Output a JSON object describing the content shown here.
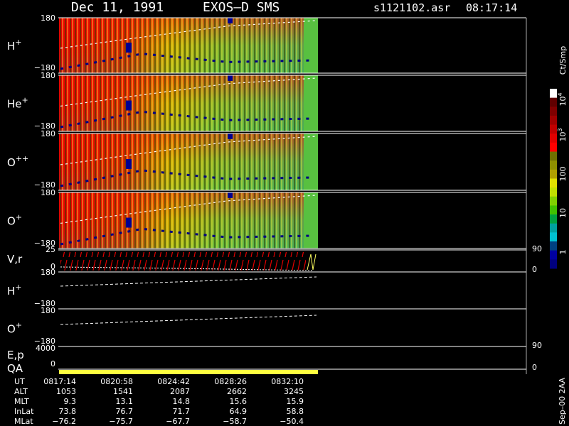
{
  "header": {
    "date": "Dec 11, 1991",
    "instrument": "EXOS–D SMS",
    "file": "s1121102.asr",
    "time": "08:17:14"
  },
  "panels": [
    {
      "ion": "H",
      "charge": "+",
      "top": "180",
      "bottom": "−180"
    },
    {
      "ion": "He",
      "charge": "+",
      "top": "180",
      "bottom": "−180"
    },
    {
      "ion": "O",
      "charge": "++",
      "top": "180",
      "bottom": "−180"
    },
    {
      "ion": "O",
      "charge": "+",
      "top": "180",
      "bottom": "−180"
    }
  ],
  "velocity": {
    "label": "V,r",
    "left_top": "25",
    "left_bottom": "0",
    "right_top": "90",
    "right_bottom": "0"
  },
  "line_panels": [
    {
      "ion": "H",
      "charge": "+",
      "top": "180",
      "bottom": "−180"
    },
    {
      "ion": "O",
      "charge": "+",
      "top": "180",
      "bottom": "−180"
    }
  ],
  "energy": {
    "label": "E,p",
    "left_top": "4000",
    "left_bottom": "0",
    "right_top": "90",
    "right_bottom": "0"
  },
  "qa": "QA",
  "colorbar": {
    "unit": "Ct/Smp",
    "labels": [
      {
        "base": "10",
        "exp": "4"
      },
      {
        "base": "10",
        "exp": "3"
      },
      {
        "base": "100"
      },
      {
        "base": "10"
      },
      {
        "base": "1"
      }
    ]
  },
  "table": {
    "rows": [
      {
        "label": "UT",
        "values": [
          "0817:14",
          "0820:58",
          "0824:42",
          "0828:26",
          "0832:10"
        ]
      },
      {
        "label": "ALT",
        "values": [
          "1053",
          "1541",
          "2087",
          "2662",
          "3245"
        ]
      },
      {
        "label": "MLT",
        "values": [
          "9.3",
          "13.1",
          "14.8",
          "15.6",
          "15.9"
        ]
      },
      {
        "label": "InLat",
        "values": [
          "73.8",
          "76.7",
          "71.7",
          "64.9",
          "58.8"
        ]
      },
      {
        "label": "MLat",
        "values": [
          "−76.2",
          "−75.7",
          "−67.7",
          "−58.7",
          "−50.4"
        ]
      }
    ]
  },
  "footer": "Sep–00 2AA"
}
